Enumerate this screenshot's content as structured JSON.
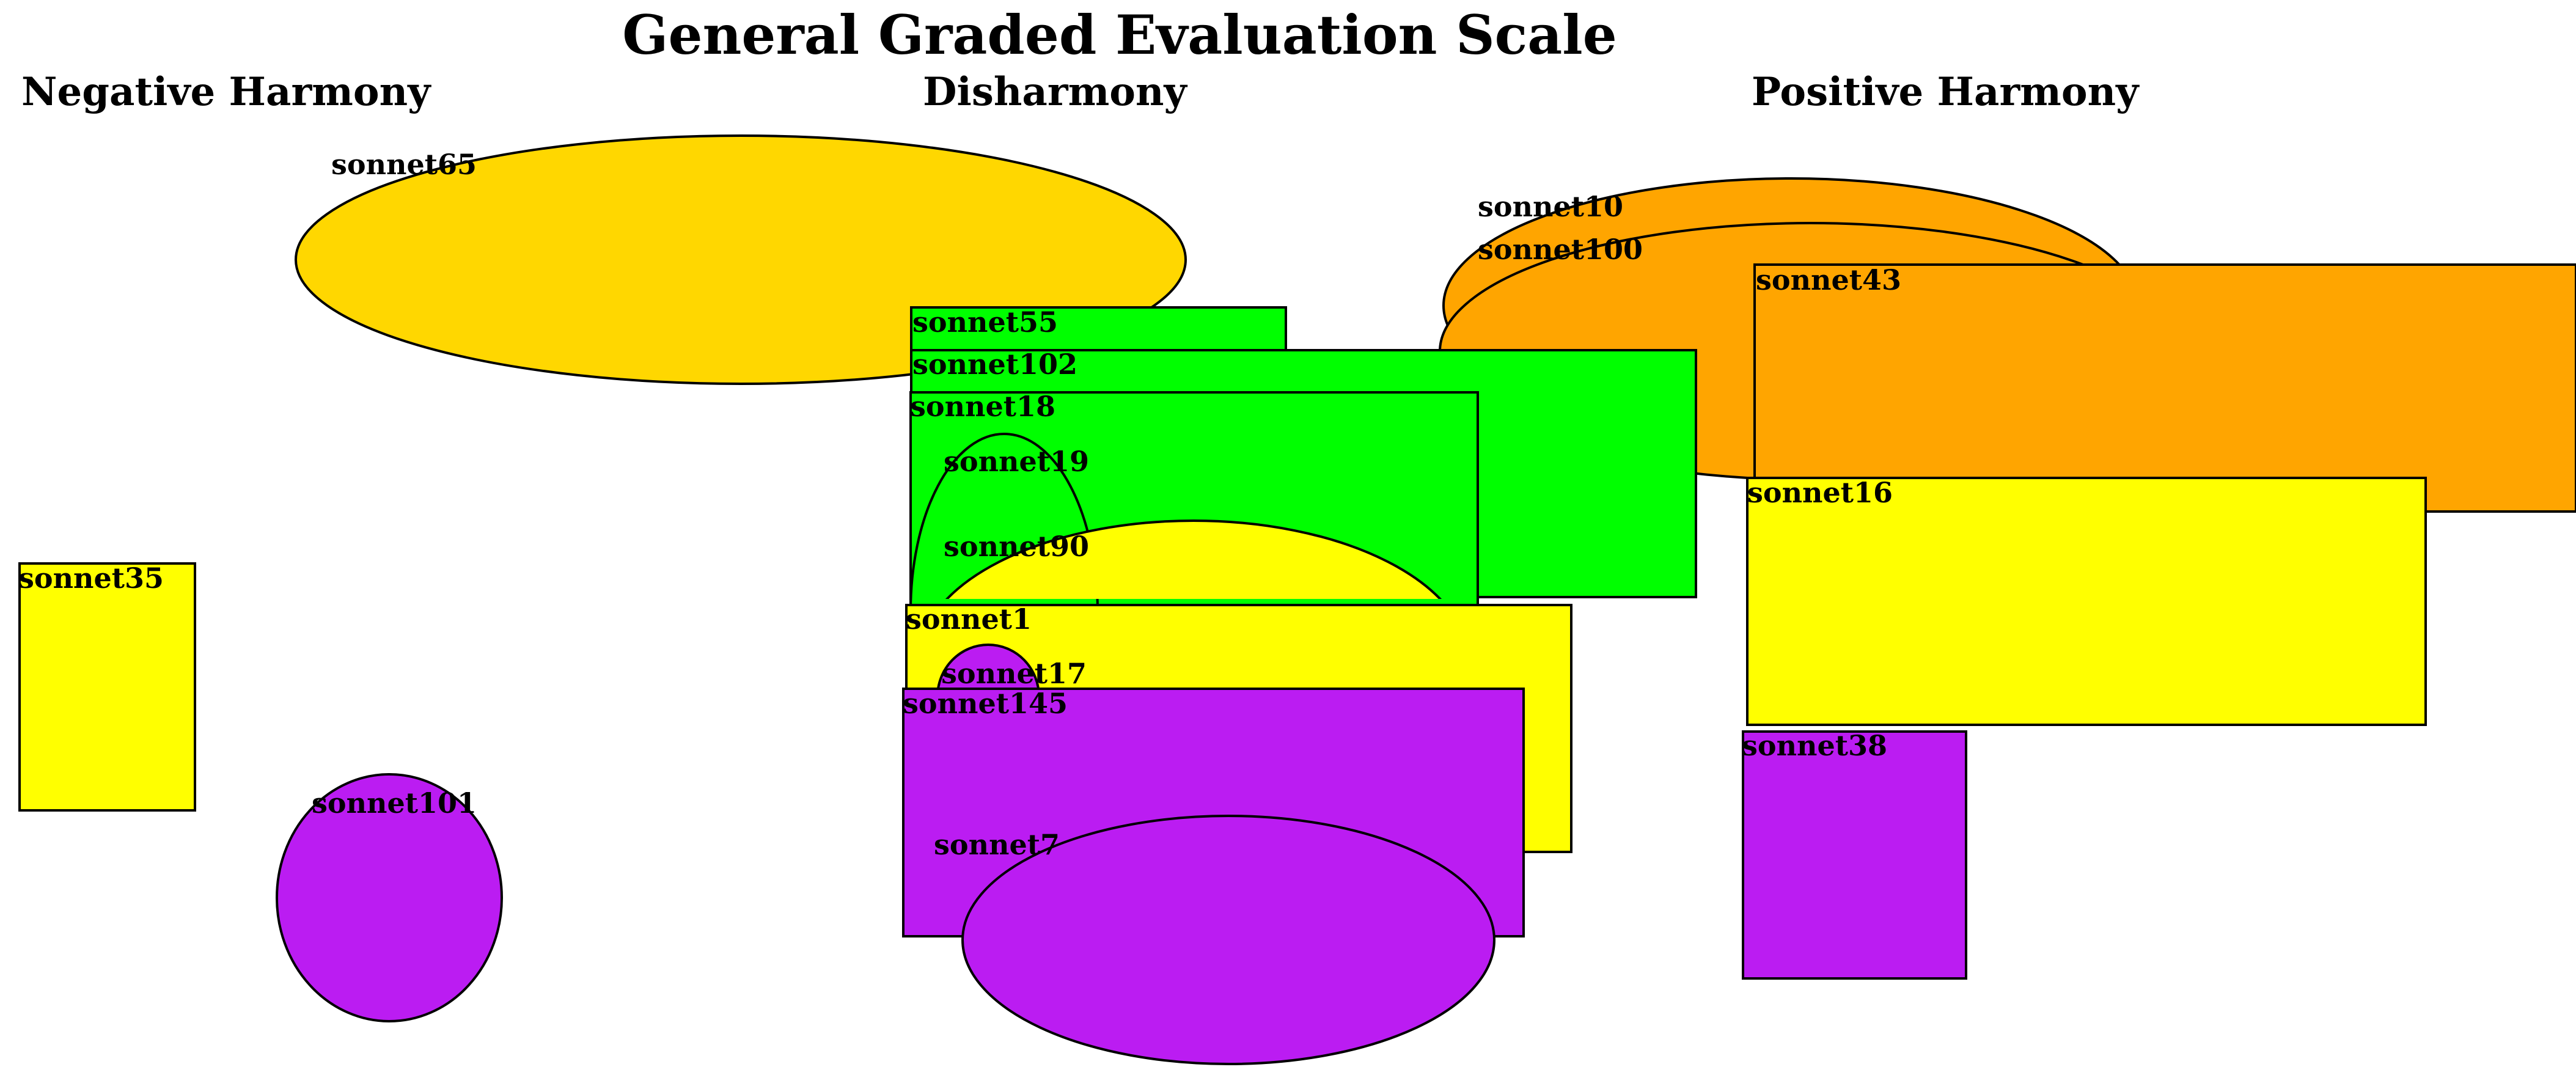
{
  "title": "General Graded Evaluation Scale",
  "headers": {
    "negative": "Negative Harmony",
    "disharmony": "Disharmony",
    "positive": "Positive Harmony"
  },
  "colors": {
    "gold": "#FFD700",
    "orange": "#FFA500",
    "green": "#00FF00",
    "yellow": "#FFFF00",
    "purple": "#BB1CF2",
    "outline": "#000000",
    "background": "#FFFFFF"
  },
  "items": [
    {
      "label": "sonnet65",
      "shape": "ellipse",
      "color": "gold"
    },
    {
      "label": "sonnet10",
      "shape": "ellipse",
      "color": "orange"
    },
    {
      "label": "sonnet100",
      "shape": "ellipse",
      "color": "orange"
    },
    {
      "label": "sonnet43",
      "shape": "rectangle",
      "color": "orange"
    },
    {
      "label": "sonnet55",
      "shape": "rectangle",
      "color": "green"
    },
    {
      "label": "sonnet102",
      "shape": "rectangle",
      "color": "green"
    },
    {
      "label": "sonnet18",
      "shape": "rectangle",
      "color": "green"
    },
    {
      "label": "sonnet19",
      "shape": "ellipse",
      "color": "green"
    },
    {
      "label": "sonnet90",
      "shape": "ellipse",
      "color": "yellow"
    },
    {
      "label": "sonnet16",
      "shape": "rectangle",
      "color": "yellow"
    },
    {
      "label": "sonnet1",
      "shape": "rectangle",
      "color": "yellow"
    },
    {
      "label": "sonnet35",
      "shape": "rectangle",
      "color": "yellow"
    },
    {
      "label": "sonnet17",
      "shape": "ellipse",
      "color": "purple"
    },
    {
      "label": "sonnet145",
      "shape": "rectangle",
      "color": "purple"
    },
    {
      "label": "sonnet38",
      "shape": "rectangle",
      "color": "purple"
    },
    {
      "label": "sonnet101",
      "shape": "ellipse",
      "color": "purple"
    },
    {
      "label": "sonnet7",
      "shape": "ellipse",
      "color": "purple"
    }
  ]
}
